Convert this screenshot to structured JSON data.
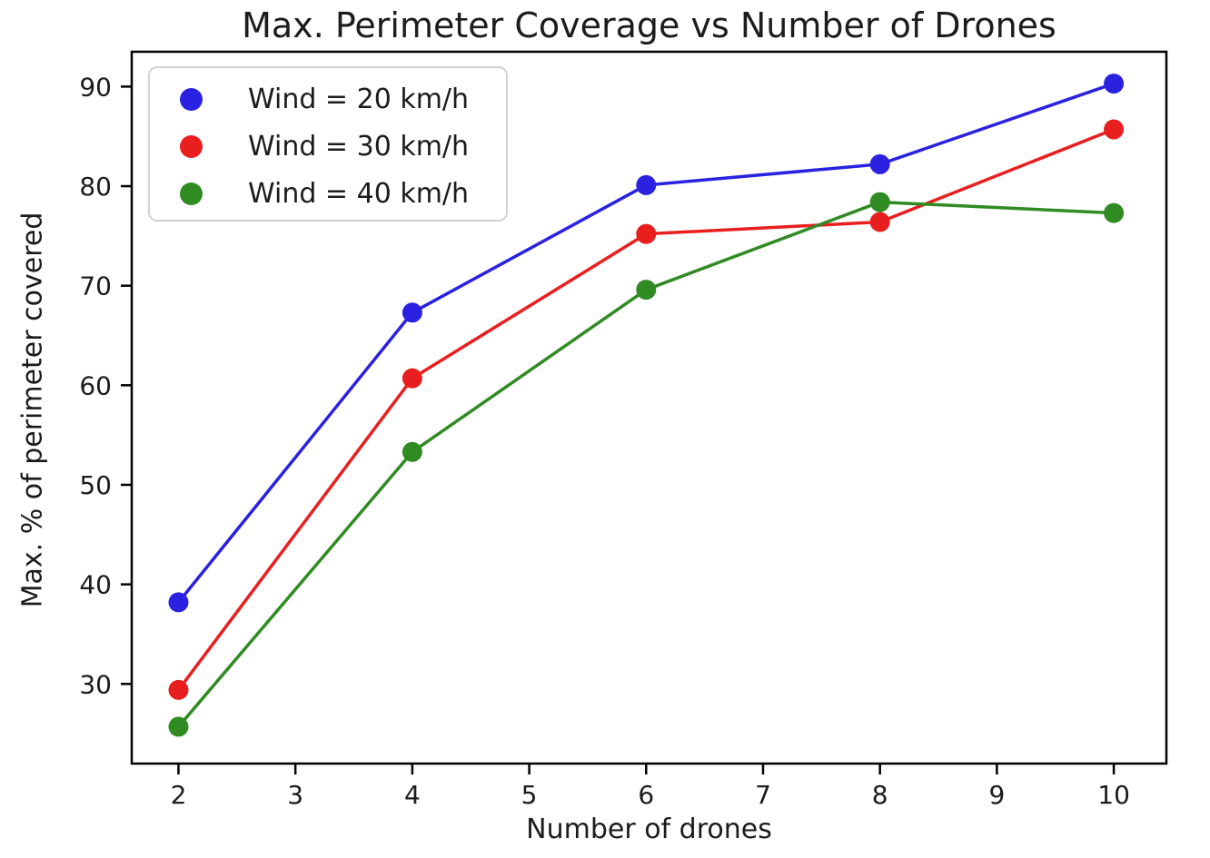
{
  "chart_data": {
    "type": "line",
    "title": "Max. Perimeter Coverage vs Number of Drones",
    "xlabel": "Number of drones",
    "ylabel": "Max. % of perimeter covered",
    "x": [
      2,
      4,
      6,
      8,
      10
    ],
    "series": [
      {
        "name": "Wind = 20 km/h",
        "color": "#2a22e0",
        "values": [
          38.2,
          67.3,
          80.1,
          82.2,
          90.3
        ]
      },
      {
        "name": "Wind = 30 km/h",
        "color": "#e91f1f",
        "values": [
          29.4,
          60.7,
          75.2,
          76.4,
          85.7
        ]
      },
      {
        "name": "Wind = 40 km/h",
        "color": "#2f8b22",
        "values": [
          25.7,
          53.3,
          69.6,
          78.4,
          77.3
        ]
      }
    ],
    "xticks": [
      2,
      3,
      4,
      5,
      6,
      7,
      8,
      9,
      10
    ],
    "yticks": [
      30,
      40,
      50,
      60,
      70,
      80,
      90
    ],
    "xlim": [
      1.6,
      10.45
    ],
    "ylim": [
      22.0,
      93.5
    ],
    "grid": false,
    "legend_position": "upper left",
    "marker": "circle",
    "line_width": 3.5,
    "marker_radius": 11,
    "frame_color": "#000000",
    "background": "#ffffff"
  }
}
